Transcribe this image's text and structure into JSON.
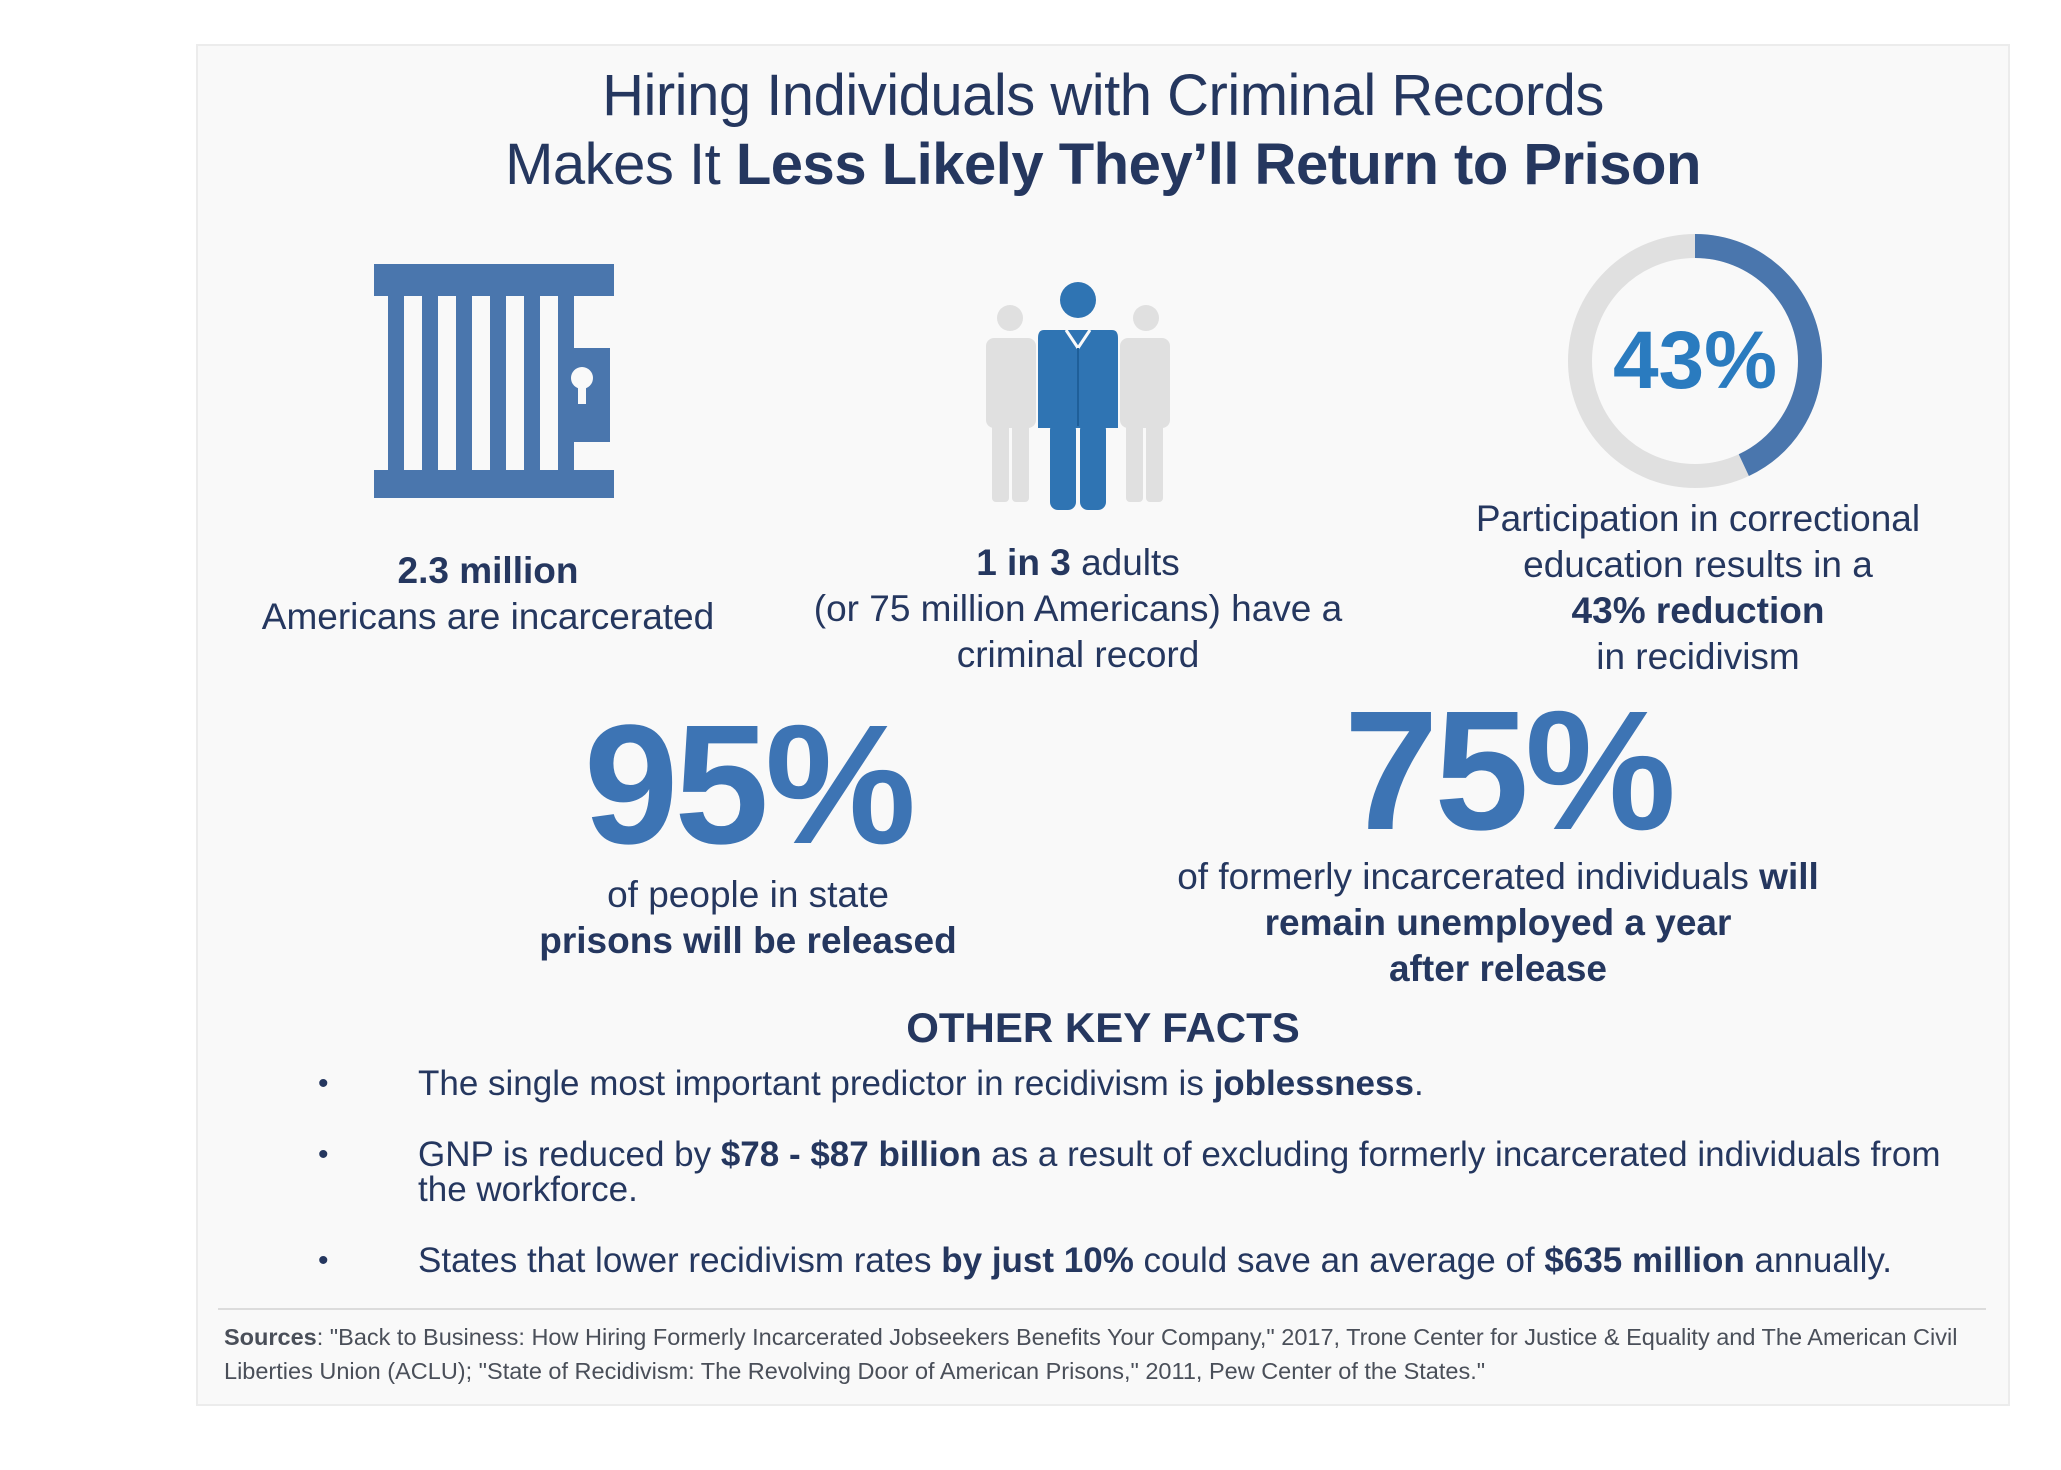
{
  "title": {
    "line1": "Hiring Individuals with Criminal Records",
    "line2_prefix": "Makes It ",
    "line2_bold": "Less Likely They’ll Return to Prison"
  },
  "stats": {
    "incarcerated": {
      "icon": "prison-cell-icon",
      "bold": "2.3 million",
      "text": "Americans are incarcerated"
    },
    "criminal_record": {
      "icon": "people-group-icon",
      "bold": "1 in 3",
      "text_after_bold": " adults",
      "line2": "(or 75 million Americans) have a",
      "line3": "criminal record"
    },
    "education": {
      "ring_label": "43%",
      "ring_fraction": 0.43,
      "line1": "Participation in correctional",
      "line2": "education results in a",
      "bold": "43% reduction",
      "line4": "in recidivism"
    },
    "released": {
      "big": "95%",
      "line1": "of people in state",
      "bold": "prisons will be released"
    },
    "unemployed": {
      "big": "75%",
      "line1_prefix": "of formerly incarcerated individuals ",
      "line1_bold": "will",
      "line2_bold": "remain unemployed a year",
      "line3_bold": "after release"
    }
  },
  "other_facts": {
    "heading": "OTHER KEY FACTS",
    "bullet": "•",
    "fact1": {
      "prefix": "The single most important predictor in recidivism is ",
      "bold": "joblessness",
      "suffix": "."
    },
    "fact2": {
      "prefix": "GNP is reduced by ",
      "bold": "$78 - $87 billion",
      "suffix": " as a result of excluding formerly incarcerated individuals from the workforce."
    },
    "fact3": {
      "prefix": "States that lower recidivism rates ",
      "bold1": "by just 10%",
      "middle": " could save an average of ",
      "bold2": "$635 million",
      "suffix": " annually."
    }
  },
  "sources": {
    "label": "Sources",
    "text": ": \"Back to Business: How Hiring Formerly Incarcerated Jobseekers Benefits Your Company,\" 2017, Trone Center for Justice & Equality and The American Civil Liberties Union (ACLU); \"State of Recidivism: The Revolving Door of American Prisons,\" 2011, Pew Center of the States.\""
  },
  "colors": {
    "navy": "#25375f",
    "blue": "#3d74b4",
    "ring_blue": "#4a76ad",
    "grey": "#e0e0e0",
    "accent": "#2a7bbf"
  }
}
